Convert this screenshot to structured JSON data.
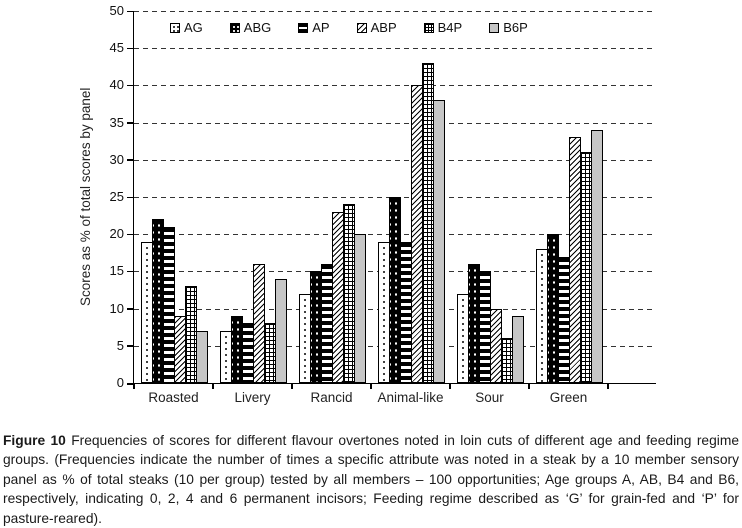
{
  "figure": {
    "caption_label": "Figure 10",
    "caption_text": "Frequencies of scores for different flavour overtones noted in loin cuts of different age and feeding regime groups. (Frequencies indicate the number of times a specific attribute was noted in a steak by a 10 member sensory panel as % of total steaks (10 per group) tested by all members – 100 opportunities; Age groups A, AB, B4 and B6, respectively, indicating 0, 2, 4 and 6 permanent incisors; Feeding regime described as ‘G’ for grain-fed and ‘P’ for pasture-reared)."
  },
  "chart_data": {
    "type": "bar",
    "title": "",
    "xlabel": "",
    "ylabel": "Scores as % of total scores by panel",
    "ylim": [
      0,
      50
    ],
    "ytick_step": 5,
    "yticks": [
      0,
      5,
      10,
      15,
      20,
      25,
      30,
      35,
      40,
      45,
      50
    ],
    "grid": "dashed-horizontal",
    "legend_position": "top-inside",
    "categories": [
      "Roasted",
      "Livery",
      "Rancid",
      "Animal-like",
      "Sour",
      "Green"
    ],
    "series": [
      {
        "name": "AG",
        "pattern": "stipple",
        "values": [
          19,
          7,
          12,
          19,
          12,
          18
        ]
      },
      {
        "name": "ABG",
        "pattern": "black-dots",
        "values": [
          22,
          9,
          15,
          25,
          16,
          20
        ]
      },
      {
        "name": "AP",
        "pattern": "h-stripes",
        "values": [
          21,
          8,
          16,
          19,
          15,
          17
        ]
      },
      {
        "name": "ABP",
        "pattern": "diag-hatch",
        "values": [
          9,
          16,
          23,
          40,
          10,
          33
        ]
      },
      {
        "name": "B4P",
        "pattern": "grid",
        "values": [
          13,
          8,
          24,
          43,
          6,
          31
        ]
      },
      {
        "name": "B6P",
        "pattern": "solid-gray",
        "values": [
          7,
          14,
          20,
          38,
          9,
          34
        ]
      }
    ],
    "colors": {
      "axis": "#000000",
      "text": "#111111",
      "bar_gray": "#c6c6c6"
    }
  }
}
